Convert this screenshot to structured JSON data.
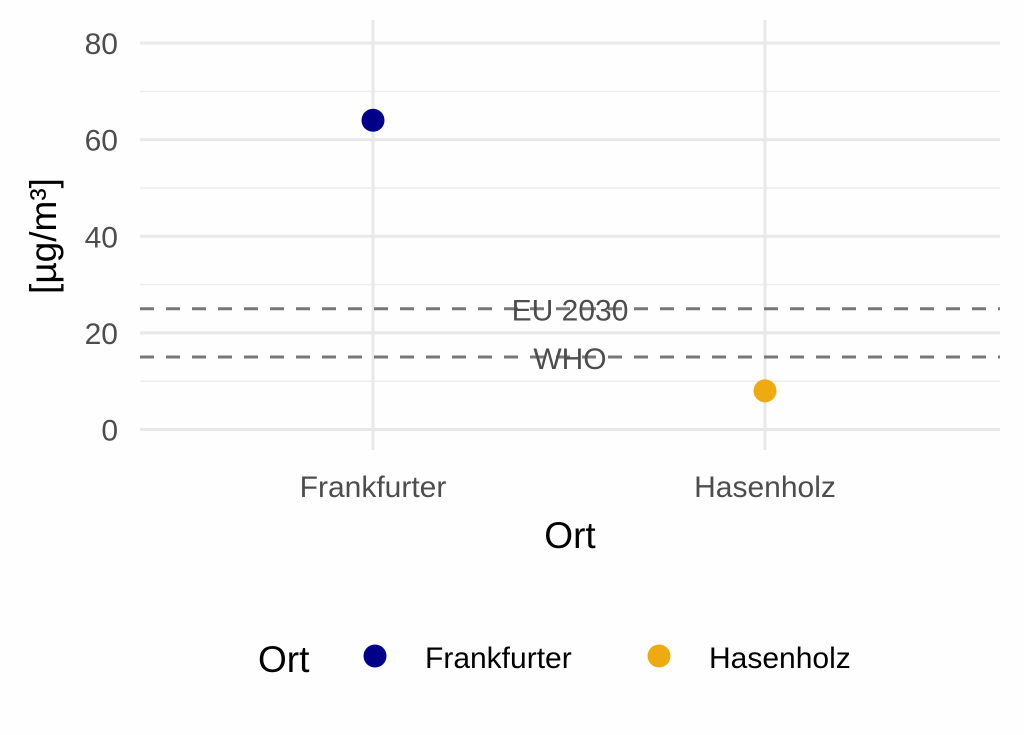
{
  "chart_data": {
    "type": "scatter",
    "title": "",
    "xlabel": "Ort",
    "ylabel": "[µg/m³]",
    "categories": [
      "Frankfurter",
      "Hasenholz"
    ],
    "values": [
      64,
      8
    ],
    "colors": [
      "#00008b",
      "#eeaa11"
    ],
    "ylim": [
      0,
      80
    ],
    "yticks": [
      0,
      20,
      40,
      60,
      80
    ],
    "grid": true,
    "reference_lines": [
      {
        "label": "EU 2030",
        "y": 25
      },
      {
        "label": "WHO",
        "y": 15
      }
    ],
    "legend": {
      "title": "Ort",
      "placement": "bottom",
      "entries": [
        "Frankfurter",
        "Hasenholz"
      ]
    }
  }
}
